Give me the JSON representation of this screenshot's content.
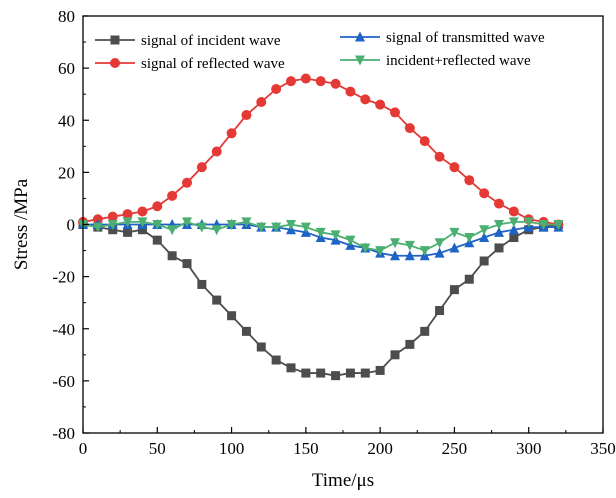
{
  "chart_data": {
    "type": "line",
    "title": "",
    "xlabel": "Time/μs",
    "ylabel": "Stress /MPa",
    "xlim": [
      0,
      350
    ],
    "ylim": [
      -80,
      80
    ],
    "xticks": [
      0,
      50,
      100,
      150,
      200,
      250,
      300,
      350
    ],
    "yticks": [
      -80,
      -60,
      -40,
      -20,
      0,
      20,
      40,
      60,
      80
    ],
    "grid": false,
    "legend_position": "top",
    "series": [
      {
        "name": "signal of incident wave",
        "color": "#4d4d4d",
        "marker": "square",
        "x": [
          0,
          10,
          20,
          30,
          40,
          50,
          60,
          70,
          80,
          90,
          100,
          110,
          120,
          130,
          140,
          150,
          160,
          170,
          180,
          190,
          200,
          210,
          220,
          230,
          240,
          250,
          260,
          270,
          280,
          290,
          300,
          310,
          320
        ],
        "values": [
          0,
          -1,
          -2,
          -3,
          -2,
          -6,
          -12,
          -15,
          -23,
          -29,
          -35,
          -41,
          -47,
          -52,
          -55,
          -57,
          -57,
          -58,
          -57,
          -57,
          -56,
          -50,
          -46,
          -41,
          -33,
          -25,
          -21,
          -14,
          -9,
          -5,
          -2,
          -1,
          0
        ]
      },
      {
        "name": "signal of reflected wave",
        "color": "#e53935",
        "marker": "circle",
        "x": [
          0,
          10,
          20,
          30,
          40,
          50,
          60,
          70,
          80,
          90,
          100,
          110,
          120,
          130,
          140,
          150,
          160,
          170,
          180,
          190,
          200,
          210,
          220,
          230,
          240,
          250,
          260,
          270,
          280,
          290,
          300,
          310,
          320
        ],
        "values": [
          1,
          2,
          3,
          4,
          5,
          7,
          11,
          16,
          22,
          28,
          35,
          42,
          47,
          52,
          55,
          56,
          55,
          54,
          51,
          48,
          46,
          43,
          37,
          32,
          26,
          22,
          17,
          12,
          8,
          5,
          2,
          1,
          0
        ]
      },
      {
        "name": "signal of transmitted wave",
        "color": "#1e63c6",
        "marker": "triangle-up",
        "x": [
          0,
          10,
          20,
          30,
          40,
          50,
          60,
          70,
          80,
          90,
          100,
          110,
          120,
          130,
          140,
          150,
          160,
          170,
          180,
          190,
          200,
          210,
          220,
          230,
          240,
          250,
          260,
          270,
          280,
          290,
          300,
          310,
          320
        ],
        "values": [
          0,
          0,
          0,
          0,
          0,
          0,
          0,
          0,
          0,
          0,
          0,
          0,
          -1,
          -1,
          -2,
          -3,
          -5,
          -6,
          -8,
          -9,
          -11,
          -12,
          -12,
          -12,
          -11,
          -9,
          -7,
          -5,
          -3,
          -2,
          -1,
          -1,
          -1
        ]
      },
      {
        "name": "incident+reflected wave",
        "color": "#4caf72",
        "marker": "triangle-down",
        "x": [
          0,
          10,
          20,
          30,
          40,
          50,
          60,
          70,
          80,
          90,
          100,
          110,
          120,
          130,
          140,
          150,
          160,
          170,
          180,
          190,
          200,
          210,
          220,
          230,
          240,
          250,
          260,
          270,
          280,
          290,
          300,
          310,
          320
        ],
        "values": [
          0,
          -1,
          0,
          1,
          1,
          0,
          -2,
          1,
          -1,
          -2,
          0,
          1,
          -1,
          -1,
          0,
          -1,
          -3,
          -4,
          -6,
          -9,
          -10,
          -7,
          -8,
          -10,
          -7,
          -3,
          -5,
          -2,
          0,
          1,
          1,
          0,
          0
        ]
      }
    ]
  }
}
